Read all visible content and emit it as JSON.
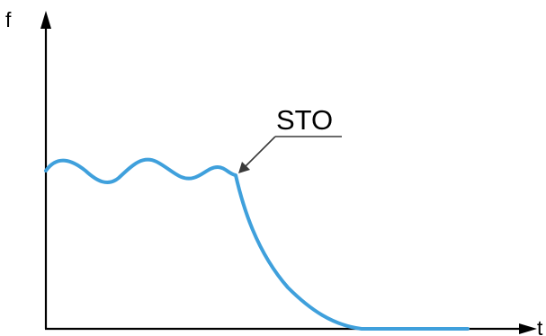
{
  "axes": {
    "y_label": "f",
    "x_label": "t"
  },
  "callout": {
    "label": "STO"
  },
  "colors": {
    "axis": "#000000",
    "curve": "#3fa0dc",
    "leader": "#3a3a3a"
  }
}
